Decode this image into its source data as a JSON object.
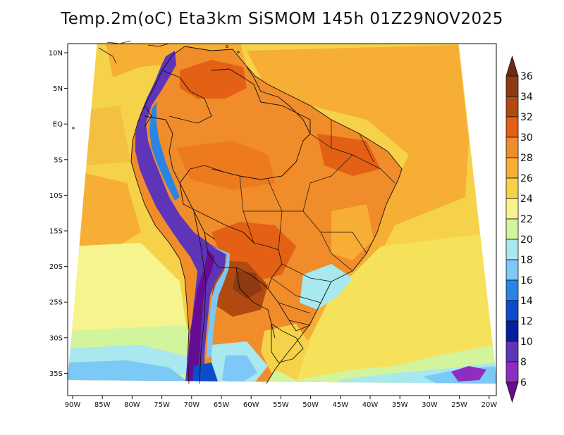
{
  "title": "Temp.2m(oC) Eta3km SiSMOM 145h 01Z29NOV2025",
  "map": {
    "x_ticks": [
      "90W",
      "85W",
      "80W",
      "75W",
      "70W",
      "65W",
      "60W",
      "55W",
      "50W",
      "45W",
      "40W",
      "35W",
      "30W",
      "25W",
      "20W"
    ],
    "y_ticks": [
      "10N",
      "5N",
      "EQ",
      "5S",
      "10S",
      "15S",
      "20S",
      "25S",
      "30S",
      "35S"
    ]
  },
  "colorbar": {
    "labels": [
      "36",
      "34",
      "32",
      "30",
      "28",
      "26",
      "24",
      "22",
      "20",
      "18",
      "16",
      "14",
      "12",
      "10",
      "8",
      "6"
    ],
    "colors": [
      "#6e2a14",
      "#8e3a12",
      "#b04a10",
      "#e46014",
      "#f08c2a",
      "#f6ae34",
      "#f6d24a",
      "#f6f48e",
      "#d2f49c",
      "#a8e8ee",
      "#7cc8f6",
      "#2a84e6",
      "#0c4ccc",
      "#041e9e",
      "#5e34b8",
      "#8e2ec0",
      "#660c90"
    ]
  },
  "colors": {
    "ocean_base": "#f6d24a",
    "land_base": "#f08c2a"
  }
}
